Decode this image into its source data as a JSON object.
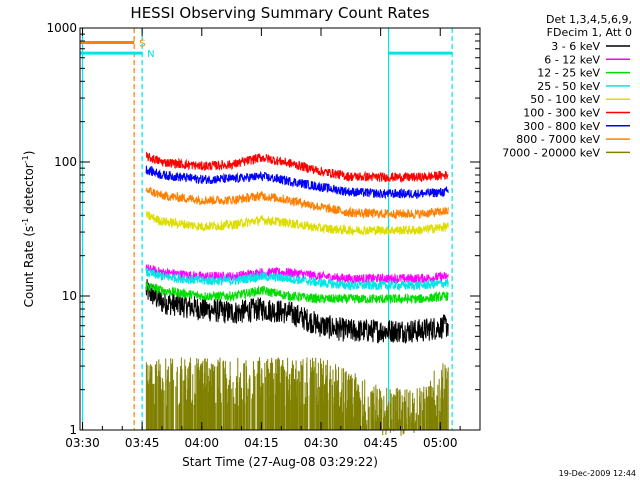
{
  "chart_data": {
    "type": "line",
    "title": "HESSI Observing Summary Count Rates",
    "xlabel": "Start Time (27-Aug-08 03:29:22)",
    "ylabel_main": "Count Rate (s",
    "ylabel_sup1": "-1",
    "ylabel_mid": " detector",
    "ylabel_sup2": "-1",
    "ylabel_end": ")",
    "y_scale": "log",
    "ylim": [
      1,
      1000
    ],
    "x_range": [
      "03:29:22",
      "05:10:00"
    ],
    "x_ticks": [
      "03:30",
      "03:45",
      "04:00",
      "04:15",
      "04:30",
      "04:45",
      "05:00"
    ],
    "y_ticks": [
      "1",
      "10",
      "100",
      "1000"
    ],
    "legend_header": [
      "Det 1,3,4,5,6,9,",
      "FDecim 1, Att 0"
    ],
    "legend_placement": "right",
    "timestamp": "19-Dec-2009 12:44",
    "series": [
      {
        "name": "3 - 6 keV",
        "color": "#000000",
        "time": [
          "03:46",
          "03:50",
          "04:00",
          "04:08",
          "04:15",
          "04:22",
          "04:30",
          "04:37",
          "04:45",
          "04:55",
          "05:02"
        ],
        "values": [
          11,
          9,
          8,
          7.5,
          8,
          7.5,
          6,
          5.5,
          5.5,
          5.5,
          6
        ]
      },
      {
        "name": "6 - 12 keV",
        "color": "#ff00ff",
        "time": [
          "03:46",
          "03:50",
          "04:00",
          "04:08",
          "04:15",
          "04:22",
          "04:30",
          "04:37",
          "04:45",
          "04:55",
          "05:02"
        ],
        "values": [
          16,
          15,
          14,
          14,
          15,
          15,
          14,
          13.5,
          13.5,
          13.5,
          14
        ]
      },
      {
        "name": "12 - 25 keV",
        "color": "#00dd00",
        "time": [
          "03:46",
          "03:50",
          "04:00",
          "04:08",
          "04:15",
          "04:22",
          "04:30",
          "04:37",
          "04:45",
          "04:55",
          "05:02"
        ],
        "values": [
          12,
          11,
          10,
          10,
          11,
          10,
          9.5,
          9.5,
          9.5,
          9.5,
          10
        ]
      },
      {
        "name": "25 - 50 keV",
        "color": "#00e5e5",
        "time": [
          "03:46",
          "03:50",
          "04:00",
          "04:08",
          "04:15",
          "04:22",
          "04:30",
          "04:37",
          "04:45",
          "04:55",
          "05:02"
        ],
        "values": [
          15,
          14,
          13,
          13,
          14,
          13.5,
          12.5,
          12,
          12,
          12,
          12.5
        ]
      },
      {
        "name": "50 - 100 keV",
        "color": "#dddd00",
        "time": [
          "03:46",
          "03:50",
          "04:00",
          "04:08",
          "04:15",
          "04:22",
          "04:30",
          "04:37",
          "04:45",
          "04:55",
          "05:02"
        ],
        "values": [
          40,
          36,
          33,
          34,
          37,
          35,
          32,
          31,
          31,
          31,
          33
        ]
      },
      {
        "name": "100 - 300 keV",
        "color": "#ff0000",
        "time": [
          "03:46",
          "03:50",
          "04:00",
          "04:08",
          "04:15",
          "04:22",
          "04:30",
          "04:37",
          "04:45",
          "04:55",
          "05:02"
        ],
        "values": [
          110,
          100,
          93,
          96,
          108,
          98,
          85,
          78,
          77,
          77,
          80
        ]
      },
      {
        "name": "300 - 800 keV",
        "color": "#0000ff",
        "time": [
          "03:46",
          "03:50",
          "04:00",
          "04:08",
          "04:15",
          "04:22",
          "04:30",
          "04:37",
          "04:45",
          "04:55",
          "05:02"
        ],
        "values": [
          88,
          80,
          74,
          75,
          78,
          72,
          65,
          60,
          58,
          58,
          60
        ]
      },
      {
        "name": "800 - 7000 keV",
        "color": "#ff8000",
        "time": [
          "03:46",
          "03:50",
          "04:00",
          "04:08",
          "04:15",
          "04:22",
          "04:30",
          "04:37",
          "04:45",
          "04:55",
          "05:02"
        ],
        "values": [
          62,
          56,
          52,
          52,
          56,
          52,
          46,
          42,
          41,
          41,
          43
        ]
      },
      {
        "name": "7000 - 20000 keV",
        "color": "#808000",
        "time": [
          "03:46",
          "03:50",
          "04:00",
          "04:08",
          "04:15",
          "04:22",
          "04:30",
          "04:37",
          "04:45",
          "04:55",
          "05:02"
        ],
        "values": [
          2.5,
          2.5,
          2.5,
          2.5,
          2.5,
          2.5,
          2.5,
          2.0,
          1.5,
          1.5,
          2.5
        ]
      }
    ],
    "flag_markers": [
      {
        "label": "S",
        "color": "#ff8000",
        "start": "03:29:22",
        "end": "03:43",
        "level": 780
      },
      {
        "label": "N",
        "color": "#00e5e5",
        "start": "03:29:22",
        "end": "03:45",
        "level": 650
      },
      {
        "label": "",
        "color": "#00e5e5",
        "start": "04:47",
        "end": "05:03",
        "level": 650
      }
    ],
    "vertical_markers": [
      {
        "color": "#ff8000",
        "style": "dashed",
        "time": "03:43"
      },
      {
        "color": "#00e5e5",
        "style": "dashed",
        "time": "03:45"
      },
      {
        "color": "#00e5e5",
        "style": "solid",
        "time": "03:30"
      },
      {
        "color": "#00e5e5",
        "style": "solid",
        "time": "04:47"
      },
      {
        "color": "#00e5e5",
        "style": "dashed",
        "time": "05:03"
      }
    ]
  }
}
